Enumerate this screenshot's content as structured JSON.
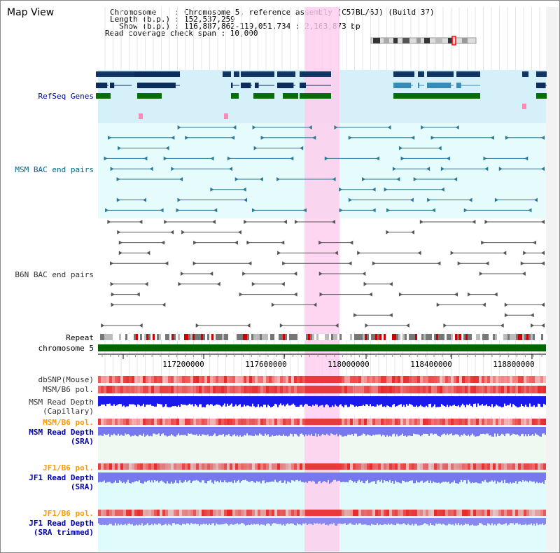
{
  "title": "Map View",
  "info": {
    "chromosome": "Chromosome    : Chromosome 5, reference assembly (C57BL/6J) (Build 37)",
    "length": "Length (b.p.) : 152,537,259",
    "show": "  Show (b.p.) : 116,887,862-119,051,734 : 2,163,873 bp",
    "coverage": "Read coverage check span : 10,000"
  },
  "tracks": {
    "refseq": "RefSeq Genes",
    "msm_bac": "MSM BAC end pairs",
    "b6n_bac": "B6N BAC end pairs",
    "repeat": "Repeat",
    "chromosome": "chromosome 5",
    "dbsnp": "dbSNP(Mouse)",
    "msm_b6_pol": "MSM/B6 pol.",
    "msm_depth_cap": "MSM Read Depth\n(Capillary)",
    "msm_b6_pol2": "MSM/B6 pol.",
    "msm_depth_sra": "MSM Read Depth\n(SRA)",
    "jf1_b6_pol": "JF1/B6 pol.",
    "jf1_depth_sra": "JF1 Read Depth\n(SRA)",
    "jf1_b6_pol2": "JF1/B6 pol.",
    "jf1_depth_trim": "JF1 Read Depth\n(SRA trimmed)"
  },
  "axis_ticks": [
    "117200000",
    "117600000",
    "118000000",
    "118400000",
    "118800000"
  ],
  "colors": {
    "refseq_label": "#000099",
    "msm_label": "#006688",
    "b6n_label": "#333333",
    "pol_orange": "#ff9900",
    "depth_label": "#0000aa",
    "highlight": "#ffccee",
    "chromosome_bar": "#006600"
  }
}
